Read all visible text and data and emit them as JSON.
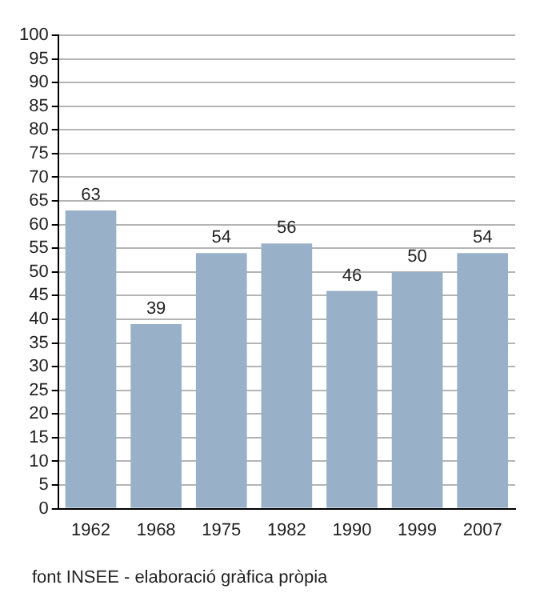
{
  "chart_data": {
    "type": "bar",
    "categories": [
      "1962",
      "1968",
      "1975",
      "1982",
      "1990",
      "1999",
      "2007"
    ],
    "values": [
      63,
      39,
      54,
      56,
      46,
      50,
      54
    ],
    "color": "#98b0c8",
    "ylim": [
      0,
      100
    ],
    "yticks": [
      0,
      5,
      10,
      15,
      20,
      25,
      30,
      35,
      40,
      45,
      50,
      55,
      60,
      65,
      70,
      75,
      80,
      85,
      90,
      95,
      100
    ],
    "grid": "y",
    "data_labels": true,
    "legend": false,
    "annotations": [
      "font INSEE - elaboració gràfica pròpia"
    ]
  }
}
